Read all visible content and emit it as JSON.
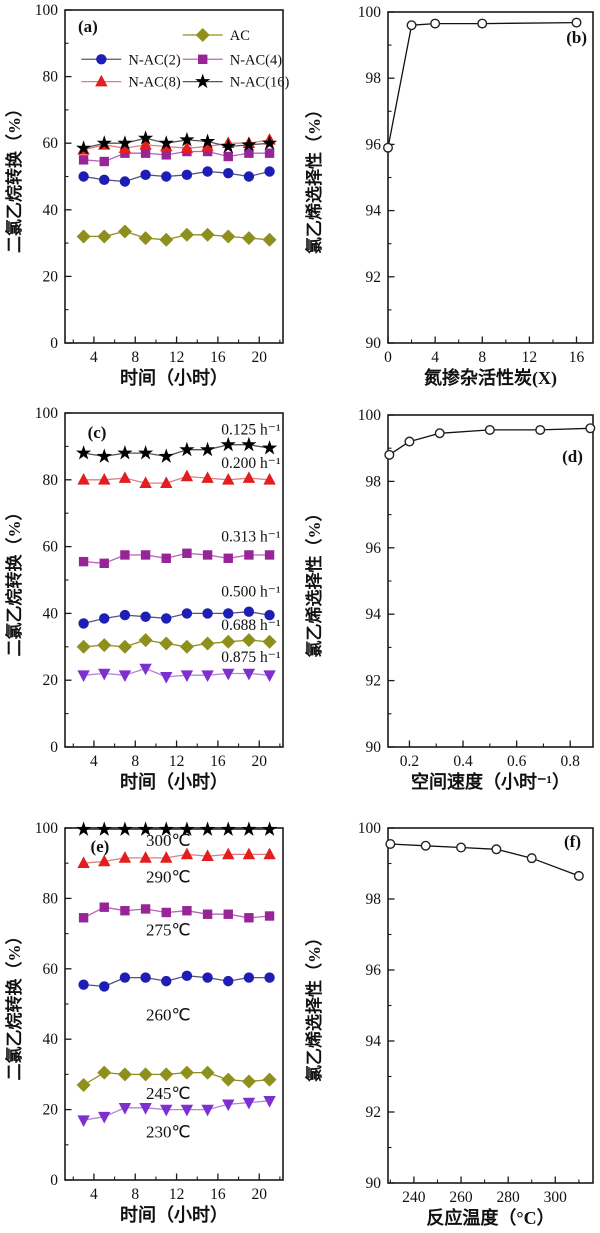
{
  "figure": {
    "background": "#ffffff",
    "panel_letters": [
      "(a)",
      "(b)",
      "(c)",
      "(d)",
      "(e)",
      "(f)"
    ]
  },
  "chart_data": [
    {
      "id": "a",
      "type": "line",
      "xlabel": "时间（小时）",
      "ylabel": "二氯乙烷转换（%）",
      "xlim": [
        1.2,
        22.3
      ],
      "ylim": [
        0,
        100
      ],
      "xticks": [
        4,
        8,
        12,
        16,
        20
      ],
      "yticks": [
        0,
        20,
        40,
        60,
        80,
        100
      ],
      "xminor": [
        2,
        6,
        10,
        14,
        18,
        22
      ],
      "yminor": [
        10,
        30,
        50,
        70,
        90
      ],
      "x": [
        3,
        5,
        7,
        9,
        11,
        13,
        15,
        17,
        19,
        21
      ],
      "series": [
        {
          "name": "AC",
          "marker": "diamond",
          "color": "#8F8F1E",
          "line": "#8F8F1E",
          "values": [
            32,
            32,
            33.5,
            31.5,
            31,
            32.5,
            32.5,
            32,
            31.5,
            31
          ]
        },
        {
          "name": "N-AC(2)",
          "marker": "circle",
          "color": "#1E1EB4",
          "line": "#54547E",
          "values": [
            50,
            49,
            48.5,
            50.5,
            50,
            50.5,
            51.5,
            51,
            50,
            51.5
          ]
        },
        {
          "name": "N-AC(4)",
          "marker": "square",
          "color": "#982598",
          "line": "#B964B9",
          "values": [
            55,
            54.5,
            57,
            57,
            56.5,
            57.5,
            57.5,
            56,
            57,
            57
          ]
        },
        {
          "name": "N-AC(8)",
          "marker": "triangle-up",
          "color": "#E31E1E",
          "line": "#D98080",
          "values": [
            58,
            59.5,
            58.5,
            59.5,
            59,
            58.5,
            59,
            60,
            60,
            61
          ]
        },
        {
          "name": "N-AC(16)",
          "marker": "star",
          "color": "#000000",
          "line": "#555555",
          "values": [
            58.5,
            60,
            60,
            61.5,
            60,
            61,
            60.5,
            59,
            59.5,
            60
          ]
        }
      ],
      "legend": [
        {
          "series": 0,
          "fx": 0.54,
          "fy": 0.075
        },
        {
          "series": 1,
          "fx": 0.075,
          "fy": 0.148
        },
        {
          "series": 2,
          "fx": 0.54,
          "fy": 0.148
        },
        {
          "series": 3,
          "fx": 0.075,
          "fy": 0.215
        },
        {
          "series": 4,
          "fx": 0.54,
          "fy": 0.215
        }
      ],
      "annotations": [
        {
          "text": "(a)",
          "fx": 0.105,
          "fy": 0.051,
          "bold": true,
          "size": 17,
          "letter": true
        }
      ]
    },
    {
      "id": "b",
      "type": "line",
      "xlabel": "氮掺杂活性炭(X)",
      "ylabel": "氯乙烯选择性（%）",
      "xlim": [
        0,
        17.4
      ],
      "ylim": [
        90,
        100
      ],
      "xticks": [
        0,
        4,
        8,
        12,
        16
      ],
      "yticks": [
        90,
        92,
        94,
        96,
        98,
        100
      ],
      "xminor": [
        2,
        6,
        10,
        14
      ],
      "yminor": [
        91,
        93,
        95,
        97,
        99
      ],
      "series": [
        {
          "name": "氯乙烯选择性",
          "marker": "circle-open",
          "color": "#ffffff",
          "line": "#111111",
          "x": [
            0,
            2,
            4,
            8,
            16
          ],
          "values": [
            95.9,
            99.6,
            99.65,
            99.65,
            99.68
          ]
        }
      ],
      "legend": [],
      "annotations": [
        {
          "text": "(b)",
          "fx": 0.92,
          "fy": 0.079,
          "bold": true,
          "size": 17,
          "letter": true
        }
      ]
    },
    {
      "id": "c",
      "type": "line",
      "xlabel": "时间（小时）",
      "ylabel": "二氯乙烷转换（%）",
      "xlim": [
        1.2,
        22.3
      ],
      "ylim": [
        0,
        100
      ],
      "xticks": [
        4,
        8,
        12,
        16,
        20
      ],
      "yticks": [
        0,
        20,
        40,
        60,
        80,
        100
      ],
      "xminor": [
        2,
        6,
        10,
        14,
        18,
        22
      ],
      "yminor": [
        10,
        30,
        50,
        70,
        90
      ],
      "x": [
        3,
        5,
        7,
        9,
        11,
        13,
        15,
        17,
        19,
        21
      ],
      "series": [
        {
          "name": "0.125 h⁻¹",
          "marker": "star",
          "color": "#000000",
          "line": "#555555",
          "values": [
            88,
            87,
            88,
            88,
            87,
            89,
            89,
            90.5,
            90.5,
            89.5
          ]
        },
        {
          "name": "0.200 h⁻¹",
          "marker": "triangle-up",
          "color": "#E31E1E",
          "line": "#D98080",
          "values": [
            80,
            80,
            80.5,
            79,
            79,
            81,
            80.5,
            80,
            80.5,
            80
          ]
        },
        {
          "name": "0.313 h⁻¹",
          "marker": "square",
          "color": "#982598",
          "line": "#B964B9",
          "values": [
            55.5,
            55,
            57.5,
            57.5,
            56.5,
            58,
            57.5,
            56.5,
            57.5,
            57.5
          ]
        },
        {
          "name": "0.500 h⁻¹",
          "marker": "circle",
          "color": "#1E1EB4",
          "line": "#54547E",
          "values": [
            37,
            38.5,
            39.5,
            39,
            38.5,
            40,
            40,
            40,
            40.5,
            39.5
          ]
        },
        {
          "name": "0.688 h⁻¹",
          "marker": "diamond",
          "color": "#8F8F1E",
          "line": "#8F8F1E",
          "values": [
            30,
            30.5,
            30,
            32,
            31,
            30,
            31,
            31.5,
            32,
            31.5
          ]
        },
        {
          "name": "0.875 h⁻¹",
          "marker": "triangle-down",
          "color": "#7E2FD0",
          "line": "#B185D8",
          "values": [
            21.5,
            22,
            21.5,
            23.5,
            21,
            21.5,
            21.5,
            22,
            22,
            21.5
          ]
        }
      ],
      "legend": [],
      "annotations": [
        {
          "text": "(c)",
          "fx": 0.147,
          "fy": 0.06,
          "bold": true,
          "size": 17,
          "letter": true
        },
        {
          "text": "0.125 h⁻¹",
          "x": 19.2,
          "y": 95,
          "size": 15.5
        },
        {
          "text": "0.200 h⁻¹",
          "x": 19.2,
          "y": 85,
          "size": 15.5
        },
        {
          "text": "0.313 h⁻¹",
          "x": 19.2,
          "y": 63,
          "size": 15.5
        },
        {
          "text": "0.500 h⁻¹",
          "x": 19.2,
          "y": 46.5,
          "size": 15.5
        },
        {
          "text": "0.688 h⁻¹",
          "x": 19.2,
          "y": 36.5,
          "size": 15.5
        },
        {
          "text": "0.875 h⁻¹",
          "x": 19.2,
          "y": 27,
          "size": 15.5
        }
      ]
    },
    {
      "id": "d",
      "type": "line",
      "xlabel": "空间速度（小时⁻¹）",
      "ylabel": "氯乙烯选择性（%）",
      "xlim": [
        0.12,
        0.885
      ],
      "ylim": [
        90,
        100
      ],
      "xticks": [
        0.2,
        0.4,
        0.6,
        0.8
      ],
      "yticks": [
        90,
        92,
        94,
        96,
        98,
        100
      ],
      "xminor": [
        0.3,
        0.5,
        0.7
      ],
      "yminor": [
        91,
        93,
        95,
        97,
        99
      ],
      "series": [
        {
          "name": "氯乙烯选择性",
          "marker": "circle-open",
          "color": "#ffffff",
          "line": "#111111",
          "x": [
            0.125,
            0.2,
            0.313,
            0.5,
            0.688,
            0.875
          ],
          "values": [
            98.8,
            99.2,
            99.45,
            99.55,
            99.55,
            99.6
          ]
        }
      ],
      "legend": [],
      "annotations": [
        {
          "text": "(d)",
          "fx": 0.9,
          "fy": 0.127,
          "bold": true,
          "size": 17,
          "letter": true
        }
      ]
    },
    {
      "id": "e",
      "type": "line",
      "xlabel": "时间（小时）",
      "ylabel": "二氯乙烷转换（%）",
      "xlim": [
        1.2,
        22.3
      ],
      "ylim": [
        0,
        100
      ],
      "xticks": [
        4,
        8,
        12,
        16,
        20
      ],
      "yticks": [
        0,
        20,
        40,
        60,
        80,
        100
      ],
      "xminor": [
        2,
        6,
        10,
        14,
        18,
        22
      ],
      "yminor": [
        10,
        30,
        50,
        70,
        90
      ],
      "x": [
        3,
        5,
        7,
        9,
        11,
        13,
        15,
        17,
        19,
        21
      ],
      "series": [
        {
          "name": "300℃",
          "marker": "star",
          "color": "#000000",
          "line": "#555555",
          "values": [
            99.6,
            99.6,
            99.6,
            99.6,
            99.6,
            99.6,
            99.6,
            99.6,
            99.6,
            99.6
          ]
        },
        {
          "name": "290℃",
          "marker": "triangle-up",
          "color": "#E31E1E",
          "line": "#D98080",
          "values": [
            90,
            90.5,
            91.5,
            91.5,
            91.5,
            92.5,
            92,
            92.5,
            92.5,
            92.5
          ]
        },
        {
          "name": "275℃",
          "marker": "square",
          "color": "#982598",
          "line": "#B964B9",
          "values": [
            74.5,
            77.5,
            76.5,
            77,
            76,
            76.5,
            75.5,
            75.5,
            74.5,
            75
          ]
        },
        {
          "name": "260℃",
          "marker": "circle",
          "color": "#1E1EB4",
          "line": "#54547E",
          "values": [
            55.5,
            55,
            57.5,
            57.5,
            56.5,
            58,
            57.5,
            56.5,
            57.5,
            57.5
          ]
        },
        {
          "name": "245℃",
          "marker": "diamond",
          "color": "#8F8F1E",
          "line": "#8F8F1E",
          "values": [
            27,
            30.5,
            30,
            30,
            30,
            30.5,
            30.5,
            28.5,
            28,
            28.5
          ]
        },
        {
          "name": "230℃",
          "marker": "triangle-down",
          "color": "#7E2FD0",
          "line": "#B185D8",
          "values": [
            17,
            18,
            20.5,
            20.5,
            20,
            20,
            20,
            21.5,
            22,
            22.5
          ]
        }
      ],
      "legend": [],
      "annotations": [
        {
          "text": "(e)",
          "fx": 0.16,
          "fy": 0.054,
          "bold": true,
          "size": 17,
          "letter": true
        },
        {
          "text": "300℃",
          "x": 11.2,
          "y": 96.3,
          "size": 17
        },
        {
          "text": "290℃",
          "x": 11.2,
          "y": 85.9,
          "size": 17
        },
        {
          "text": "275℃",
          "x": 11.2,
          "y": 70.9,
          "size": 17
        },
        {
          "text": "260℃",
          "x": 11.2,
          "y": 46.8,
          "size": 17
        },
        {
          "text": "245℃",
          "x": 11.2,
          "y": 24.4,
          "size": 17
        },
        {
          "text": "230℃",
          "x": 11.2,
          "y": 13.5,
          "size": 17
        }
      ]
    },
    {
      "id": "f",
      "type": "line",
      "xlabel": "反应温度（°C）",
      "ylabel": "氯乙烯选择性（%）",
      "xlim": [
        229,
        316
      ],
      "ylim": [
        90,
        100
      ],
      "xticks": [
        240,
        260,
        280,
        300
      ],
      "yticks": [
        90,
        92,
        94,
        96,
        98,
        100
      ],
      "xminor": [
        230,
        250,
        270,
        290,
        310
      ],
      "yminor": [
        91,
        93,
        95,
        97,
        99
      ],
      "series": [
        {
          "name": "氯乙烯选择性",
          "marker": "circle-open",
          "color": "#ffffff",
          "line": "#111111",
          "x": [
            230,
            245,
            260,
            275,
            290,
            310
          ],
          "values": [
            99.55,
            99.5,
            99.45,
            99.4,
            99.15,
            98.65
          ]
        }
      ],
      "legend": [],
      "annotations": [
        {
          "text": "(f)",
          "fx": 0.9,
          "fy": 0.039,
          "bold": true,
          "size": 17,
          "letter": true
        }
      ]
    }
  ]
}
